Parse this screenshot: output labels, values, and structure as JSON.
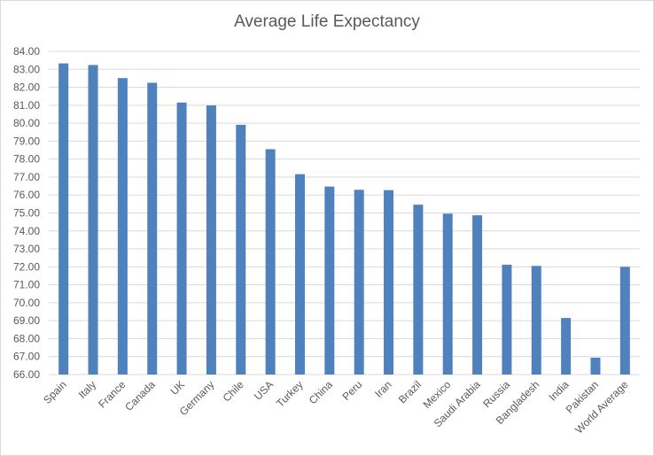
{
  "chart_data": {
    "type": "bar",
    "title": "Average Life Expectancy",
    "xlabel": "",
    "ylabel": "",
    "ylim": [
      66,
      84
    ],
    "ytick_step": 1,
    "ytick_labels": [
      "66.00",
      "67.00",
      "68.00",
      "69.00",
      "70.00",
      "71.00",
      "72.00",
      "73.00",
      "74.00",
      "75.00",
      "76.00",
      "77.00",
      "78.00",
      "79.00",
      "80.00",
      "81.00",
      "82.00",
      "83.00",
      "84.00"
    ],
    "grid": true,
    "bar_color": "#4f81bd",
    "grid_color": "#d9d9d9",
    "categories": [
      "Spain",
      "Italy",
      "France",
      "Canada",
      "UK",
      "Germany",
      "Chile",
      "USA",
      "Turkey",
      "China",
      "Peru",
      "Iran",
      "Brazil",
      "Mexico",
      "Saudi Arabia",
      "Russia",
      "Bangladesh",
      "India",
      "Pakistan",
      "World Average"
    ],
    "values": [
      83.33,
      83.24,
      82.51,
      82.25,
      81.15,
      80.99,
      79.91,
      78.55,
      77.16,
      76.47,
      76.29,
      76.27,
      75.46,
      74.96,
      74.87,
      72.12,
      72.05,
      69.15,
      66.94,
      72.0
    ]
  }
}
